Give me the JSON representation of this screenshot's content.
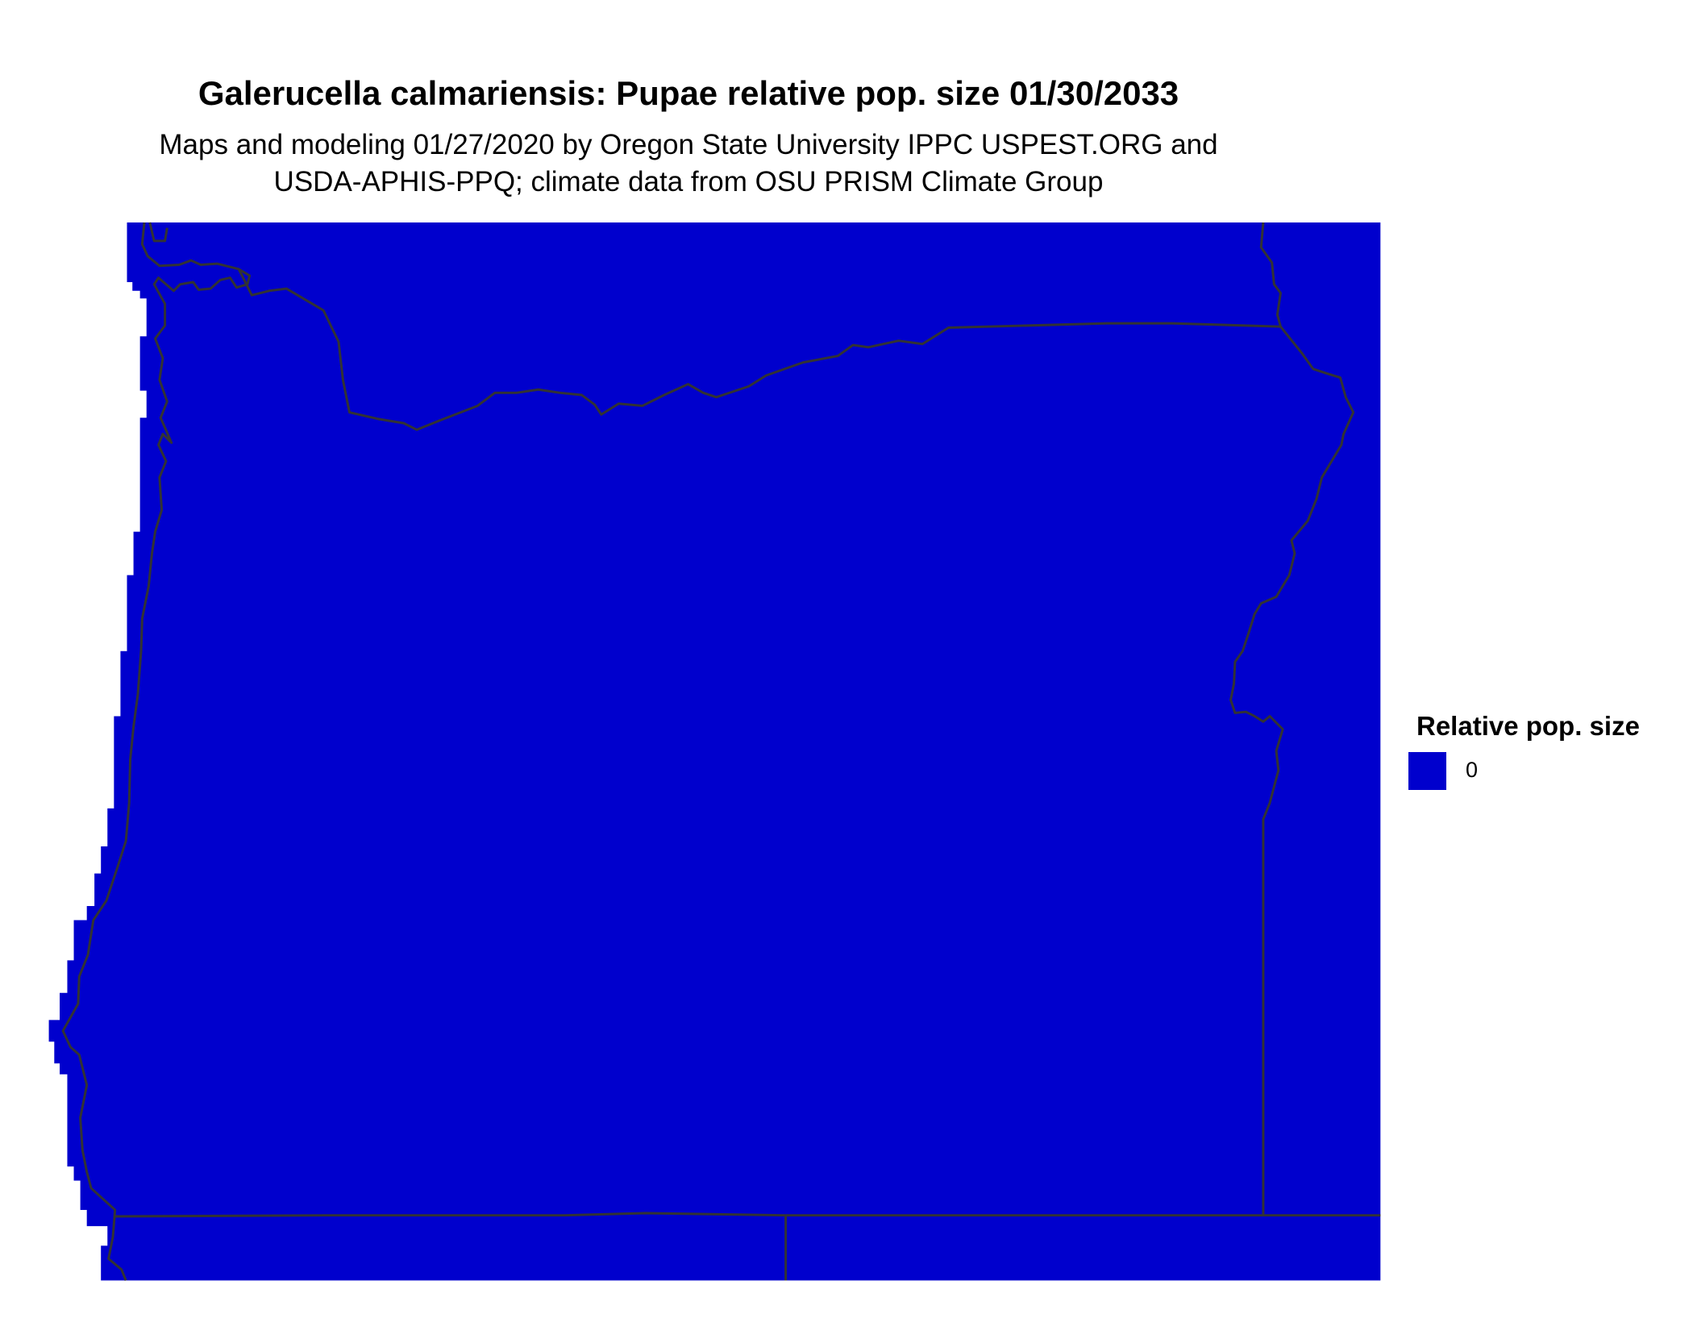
{
  "title": "Galerucella calmariensis: Pupae relative pop. size 01/30/2033",
  "subtitle_line1": "Maps and modeling 01/27/2020 by Oregon State University IPPC USPEST.ORG and",
  "subtitle_line2": "USDA-APHIS-PPQ; climate data from OSU PRISM Climate Group",
  "legend": {
    "title": "Relative pop. size",
    "items": [
      {
        "label": "0",
        "color": "#0000CD"
      }
    ]
  },
  "colors": {
    "fill": "#0000CD",
    "border": "#333333"
  }
}
